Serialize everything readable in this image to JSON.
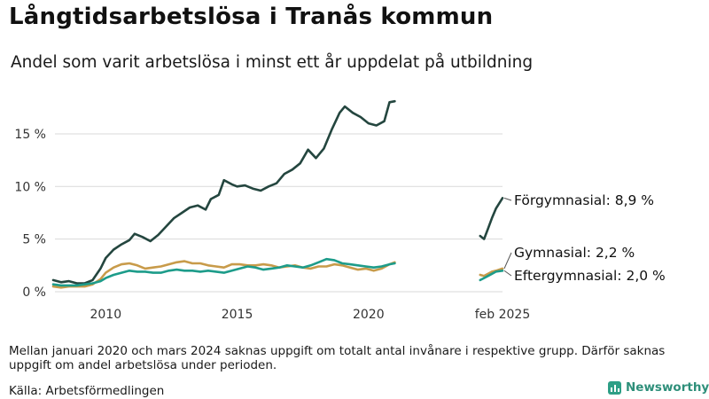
{
  "title": "Långtidsarbetslösa i Tranås kommun",
  "subtitle": "Andel som varit arbetslösa i minst ett år uppdelat på utbildning",
  "note": "Mellan januari 2020 och mars 2024 saknas uppgift om totalt antal invånare i respektive grupp. Därför saknas uppgift om andel arbetslösa under perioden.",
  "source": "Källa: Arbetsförmedlingen",
  "brand": "Newsworthy",
  "chart_data": {
    "type": "line",
    "ylim": [
      0,
      19
    ],
    "yticks": [
      0,
      5,
      10,
      15
    ],
    "ytick_labels": [
      "0 %",
      "5 %",
      "10 %",
      "15 %"
    ],
    "xticks": [
      2010,
      2015,
      2020,
      2025.1
    ],
    "xtick_labels": [
      "2010",
      "2015",
      "2020",
      "feb 2025"
    ],
    "grid": "horizontal",
    "series": [
      {
        "name": "Förgymnasial",
        "color": "#24463f",
        "end_label": "Förgymnasial: 8,9 %",
        "segments": [
          [
            [
              2008.0,
              1.1
            ],
            [
              2008.3,
              0.9
            ],
            [
              2008.6,
              1.0
            ],
            [
              2008.9,
              0.8
            ],
            [
              2009.2,
              0.8
            ],
            [
              2009.5,
              1.1
            ],
            [
              2009.8,
              2.2
            ],
            [
              2010.0,
              3.2
            ],
            [
              2010.3,
              4.0
            ],
            [
              2010.6,
              4.5
            ],
            [
              2010.9,
              4.9
            ],
            [
              2011.1,
              5.5
            ],
            [
              2011.4,
              5.2
            ],
            [
              2011.7,
              4.8
            ],
            [
              2012.0,
              5.4
            ],
            [
              2012.3,
              6.2
            ],
            [
              2012.6,
              7.0
            ],
            [
              2012.9,
              7.5
            ],
            [
              2013.2,
              8.0
            ],
            [
              2013.5,
              8.2
            ],
            [
              2013.8,
              7.8
            ],
            [
              2014.0,
              8.8
            ],
            [
              2014.3,
              9.2
            ],
            [
              2014.5,
              10.6
            ],
            [
              2014.8,
              10.2
            ],
            [
              2015.0,
              10.0
            ],
            [
              2015.3,
              10.1
            ],
            [
              2015.6,
              9.8
            ],
            [
              2015.9,
              9.6
            ],
            [
              2016.2,
              10.0
            ],
            [
              2016.5,
              10.3
            ],
            [
              2016.8,
              11.2
            ],
            [
              2017.1,
              11.6
            ],
            [
              2017.4,
              12.2
            ],
            [
              2017.7,
              13.5
            ],
            [
              2018.0,
              12.7
            ],
            [
              2018.3,
              13.6
            ],
            [
              2018.6,
              15.4
            ],
            [
              2018.9,
              17.0
            ],
            [
              2019.1,
              17.6
            ],
            [
              2019.4,
              17.0
            ],
            [
              2019.7,
              16.6
            ],
            [
              2020.0,
              16.0
            ],
            [
              2020.3,
              15.8
            ],
            [
              2020.6,
              16.2
            ],
            [
              2020.8,
              18.0
            ],
            [
              2021.0,
              18.1
            ]
          ],
          [
            [
              2024.25,
              5.3
            ],
            [
              2024.4,
              5.0
            ],
            [
              2024.55,
              6.0
            ],
            [
              2024.7,
              7.0
            ],
            [
              2024.85,
              7.9
            ],
            [
              2025.1,
              8.9
            ]
          ]
        ]
      },
      {
        "name": "Gymnasial",
        "color": "#c89b4a",
        "end_label": "Gymnasial: 2,2 %",
        "segments": [
          [
            [
              2008.0,
              0.5
            ],
            [
              2008.3,
              0.4
            ],
            [
              2008.6,
              0.5
            ],
            [
              2008.9,
              0.5
            ],
            [
              2009.2,
              0.5
            ],
            [
              2009.5,
              0.7
            ],
            [
              2009.8,
              1.2
            ],
            [
              2010.0,
              1.8
            ],
            [
              2010.3,
              2.3
            ],
            [
              2010.6,
              2.6
            ],
            [
              2010.9,
              2.7
            ],
            [
              2011.2,
              2.5
            ],
            [
              2011.5,
              2.2
            ],
            [
              2011.8,
              2.3
            ],
            [
              2012.1,
              2.4
            ],
            [
              2012.4,
              2.6
            ],
            [
              2012.7,
              2.8
            ],
            [
              2013.0,
              2.9
            ],
            [
              2013.3,
              2.7
            ],
            [
              2013.6,
              2.7
            ],
            [
              2013.9,
              2.5
            ],
            [
              2014.2,
              2.4
            ],
            [
              2014.5,
              2.3
            ],
            [
              2014.8,
              2.6
            ],
            [
              2015.1,
              2.6
            ],
            [
              2015.4,
              2.5
            ],
            [
              2015.7,
              2.5
            ],
            [
              2016.0,
              2.6
            ],
            [
              2016.3,
              2.5
            ],
            [
              2016.6,
              2.3
            ],
            [
              2016.9,
              2.4
            ],
            [
              2017.2,
              2.5
            ],
            [
              2017.5,
              2.3
            ],
            [
              2017.8,
              2.2
            ],
            [
              2018.1,
              2.4
            ],
            [
              2018.4,
              2.4
            ],
            [
              2018.7,
              2.6
            ],
            [
              2019.0,
              2.5
            ],
            [
              2019.3,
              2.3
            ],
            [
              2019.6,
              2.1
            ],
            [
              2019.9,
              2.2
            ],
            [
              2020.2,
              2.0
            ],
            [
              2020.5,
              2.2
            ],
            [
              2020.8,
              2.6
            ],
            [
              2021.0,
              2.8
            ]
          ],
          [
            [
              2024.25,
              1.6
            ],
            [
              2024.4,
              1.5
            ],
            [
              2024.55,
              1.7
            ],
            [
              2024.7,
              1.9
            ],
            [
              2024.85,
              2.0
            ],
            [
              2025.1,
              2.2
            ]
          ]
        ]
      },
      {
        "name": "Eftergymnasial",
        "color": "#1d9c8a",
        "end_label": "Eftergymnasial: 2,0 %",
        "segments": [
          [
            [
              2008.0,
              0.7
            ],
            [
              2008.3,
              0.6
            ],
            [
              2008.6,
              0.6
            ],
            [
              2008.9,
              0.6
            ],
            [
              2009.2,
              0.7
            ],
            [
              2009.5,
              0.8
            ],
            [
              2009.8,
              1.0
            ],
            [
              2010.0,
              1.3
            ],
            [
              2010.3,
              1.6
            ],
            [
              2010.6,
              1.8
            ],
            [
              2010.9,
              2.0
            ],
            [
              2011.2,
              1.9
            ],
            [
              2011.5,
              1.9
            ],
            [
              2011.8,
              1.8
            ],
            [
              2012.1,
              1.8
            ],
            [
              2012.4,
              2.0
            ],
            [
              2012.7,
              2.1
            ],
            [
              2013.0,
              2.0
            ],
            [
              2013.3,
              2.0
            ],
            [
              2013.6,
              1.9
            ],
            [
              2013.9,
              2.0
            ],
            [
              2014.2,
              1.9
            ],
            [
              2014.5,
              1.8
            ],
            [
              2014.8,
              2.0
            ],
            [
              2015.1,
              2.2
            ],
            [
              2015.4,
              2.4
            ],
            [
              2015.7,
              2.3
            ],
            [
              2016.0,
              2.1
            ],
            [
              2016.3,
              2.2
            ],
            [
              2016.6,
              2.3
            ],
            [
              2016.9,
              2.5
            ],
            [
              2017.2,
              2.4
            ],
            [
              2017.5,
              2.3
            ],
            [
              2017.8,
              2.5
            ],
            [
              2018.1,
              2.8
            ],
            [
              2018.4,
              3.1
            ],
            [
              2018.7,
              3.0
            ],
            [
              2019.0,
              2.7
            ],
            [
              2019.3,
              2.6
            ],
            [
              2019.6,
              2.5
            ],
            [
              2019.9,
              2.4
            ],
            [
              2020.2,
              2.3
            ],
            [
              2020.5,
              2.4
            ],
            [
              2020.8,
              2.6
            ],
            [
              2021.0,
              2.7
            ]
          ],
          [
            [
              2024.25,
              1.1
            ],
            [
              2024.4,
              1.3
            ],
            [
              2024.55,
              1.5
            ],
            [
              2024.7,
              1.7
            ],
            [
              2024.85,
              1.9
            ],
            [
              2025.1,
              2.0
            ]
          ]
        ]
      }
    ]
  }
}
